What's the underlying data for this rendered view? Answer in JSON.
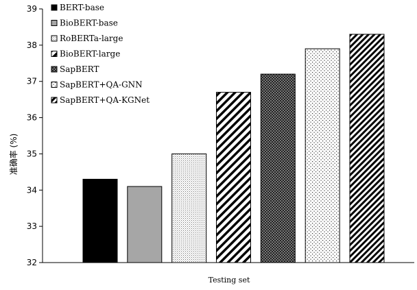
{
  "chart_data": {
    "type": "bar",
    "title": "",
    "xlabel": "Testing set",
    "ylabel": "准确率 (%)",
    "ylim": [
      32,
      39
    ],
    "yticks": [
      32,
      33,
      34,
      35,
      36,
      37,
      38,
      39
    ],
    "grid": false,
    "legend_position": "top-left inside",
    "series": [
      {
        "name": "BERT-base",
        "values": [
          34.3
        ],
        "color": "#000000",
        "pattern": "solid-black"
      },
      {
        "name": "BioBERT-base",
        "values": [
          34.1
        ],
        "color": "#a6a6a6",
        "pattern": "solid-gray"
      },
      {
        "name": "RoBERTa-large",
        "values": [
          35.0
        ],
        "color": "#ffffff",
        "pattern": "fine-dots"
      },
      {
        "name": "BioBERT-large",
        "values": [
          36.7
        ],
        "color": "#ffffff",
        "pattern": "wide-diagonal"
      },
      {
        "name": "SapBERT",
        "values": [
          37.2
        ],
        "color": "#555555",
        "pattern": "dark-checker"
      },
      {
        "name": "SapBERT+QA-GNN",
        "values": [
          37.9
        ],
        "color": "#ffffff",
        "pattern": "sparse-dots"
      },
      {
        "name": "SapBERT+QA-KGNet",
        "values": [
          38.3
        ],
        "color": "#ffffff",
        "pattern": "dense-diagonal"
      }
    ]
  }
}
